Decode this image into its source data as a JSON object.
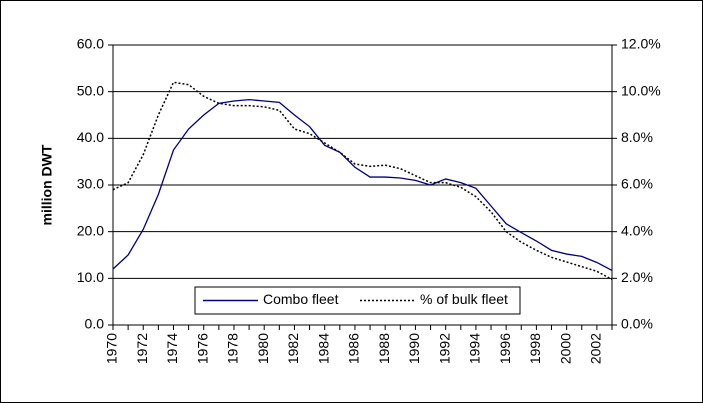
{
  "chart_data": {
    "type": "line",
    "ylabel": "million DWT",
    "categories": [
      "1970",
      null,
      "1972",
      null,
      "1974",
      null,
      "1976",
      null,
      "1978",
      null,
      "1980",
      null,
      "1982",
      null,
      "1984",
      null,
      "1986",
      null,
      "1988",
      null,
      "1990",
      null,
      "1992",
      null,
      "1994",
      null,
      "1996",
      null,
      "1998",
      null,
      "2000",
      null,
      "2002",
      null
    ],
    "series": [
      {
        "name": "Combo fleet",
        "color": "#000080",
        "style": "solid",
        "values": [
          12,
          15,
          20.5,
          28,
          37.5,
          42,
          45,
          47.5,
          48,
          48.3,
          48,
          47.7,
          45,
          42.5,
          38.5,
          37,
          33.8,
          31.7,
          31.7,
          31.5,
          31,
          30,
          31.3,
          30.5,
          29.3,
          25.5,
          21.7,
          19.8,
          18,
          16,
          15.2,
          14.7,
          13.4,
          11.7
        ]
      },
      {
        "name": "% of bulk fleet",
        "color": "#000000",
        "style": "dotted",
        "axis": "y2",
        "values": [
          5.8,
          6.1,
          7.3,
          9.0,
          10.4,
          10.3,
          9.8,
          9.5,
          9.4,
          9.4,
          9.35,
          9.2,
          8.4,
          8.2,
          7.8,
          7.4,
          6.9,
          6.8,
          6.85,
          6.7,
          6.4,
          6.1,
          6.1,
          5.9,
          5.5,
          4.85,
          4.0,
          3.55,
          3.2,
          2.9,
          2.7,
          2.5,
          2.3,
          1.95
        ]
      }
    ],
    "ylim": [
      0,
      60
    ],
    "yticks": [
      {
        "value": 0,
        "label": "0.0"
      },
      {
        "value": 10,
        "label": "10.0"
      },
      {
        "value": 20,
        "label": "20.0"
      },
      {
        "value": 30,
        "label": "30.0"
      },
      {
        "value": 40,
        "label": "40.0"
      },
      {
        "value": 50,
        "label": "50.0"
      },
      {
        "value": 60,
        "label": "60.0"
      }
    ],
    "y2lim": [
      0,
      12
    ],
    "y2ticks": [
      {
        "value": 0,
        "label": "0.0%"
      },
      {
        "value": 2,
        "label": "2.0%"
      },
      {
        "value": 4,
        "label": "4.0%"
      },
      {
        "value": 6,
        "label": "6.0%"
      },
      {
        "value": 8,
        "label": "8.0%"
      },
      {
        "value": 10,
        "label": "10.0%"
      },
      {
        "value": 12,
        "label": "12.0%"
      }
    ],
    "grid": true,
    "legend": "bottom"
  }
}
